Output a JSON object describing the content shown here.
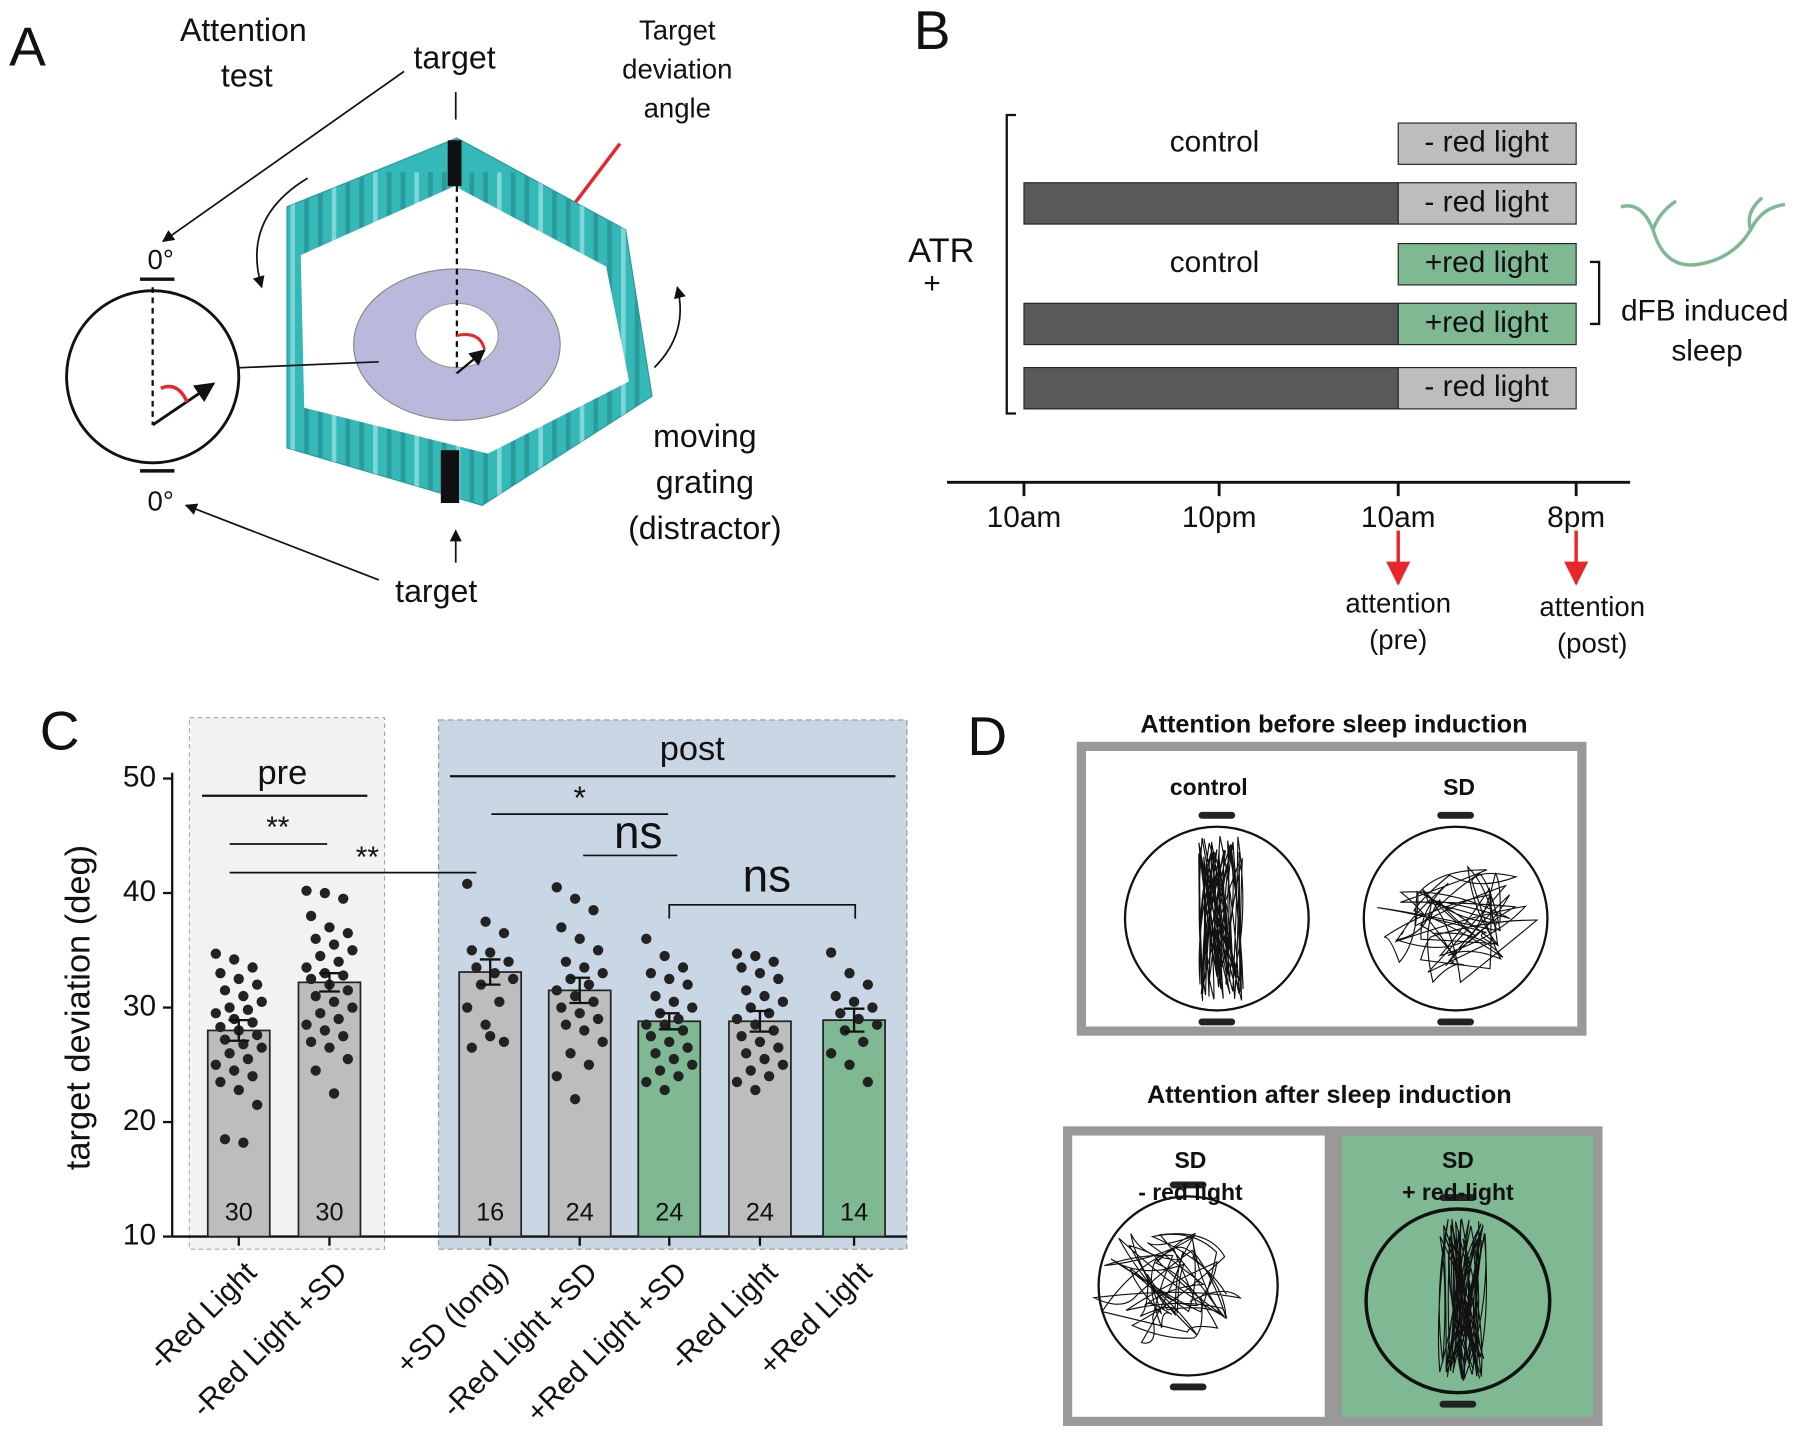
{
  "panels": {
    "a": {
      "letter": "A",
      "title": [
        "Attention",
        "test"
      ],
      "target_top": "target",
      "target_bottom": "target",
      "angle_label": [
        "Target",
        "deviation",
        "angle"
      ],
      "zero_top": "0°",
      "zero_bottom": "0°",
      "distractor": [
        "moving",
        "grating",
        "(distractor)"
      ]
    },
    "b": {
      "letter": "B",
      "group": [
        "ATR",
        "+"
      ],
      "rows": [
        {
          "label": "control",
          "light": "- red light",
          "color": "#bdbdbd"
        },
        {
          "light": "- red light",
          "color": "#bdbdbd"
        },
        {
          "label": "control",
          "light": "+red light",
          "color": "#7fb993"
        },
        {
          "light": "+red light",
          "color": "#7fb993"
        },
        {
          "light": "- red light",
          "color": "#bdbdbd"
        }
      ],
      "dark_color": "#58595b",
      "times": [
        "10am",
        "10pm",
        "10am",
        "8pm"
      ],
      "tests": [
        [
          "attention",
          "(pre)"
        ],
        [
          "attention",
          "(post)"
        ]
      ],
      "sleep_note": [
        "dFB induced",
        "sleep"
      ],
      "sleep_color": "#7fb993"
    },
    "d": {
      "letter": "D",
      "before_title": "Attention before sleep induction",
      "after_title": "Attention after sleep induction",
      "boxes": [
        [
          "control"
        ],
        [
          "SD"
        ],
        [
          "SD",
          "- red light"
        ],
        [
          "SD",
          "+ red-light"
        ]
      ],
      "green": "#7fb993"
    }
  },
  "chart_data": {
    "type": "bar",
    "panel_label": "C",
    "ylabel": "target deviation (deg)",
    "categories": [
      "-Red Light",
      "-Red Light +SD",
      "+SD (long)",
      "-Red Light +SD",
      "+Red Light +SD",
      "-Red Light",
      "+Red Light"
    ],
    "values": [
      28,
      32.2,
      33.1,
      31.5,
      28.8,
      28.8,
      28.9
    ],
    "errors": [
      0.9,
      0.8,
      1.1,
      1.1,
      0.7,
      0.9,
      1.0
    ],
    "colors": [
      "#bdbdbd",
      "#bdbdbd",
      "#bdbdbd",
      "#bdbdbd",
      "#7fb993",
      "#bdbdbd",
      "#7fb993"
    ],
    "n": [
      30,
      30,
      16,
      24,
      24,
      24,
      14
    ],
    "points": [
      [
        34.7,
        34.2,
        33.5,
        33,
        32.5,
        32,
        31.5,
        31,
        30.5,
        30,
        29.8,
        29.5,
        29,
        28.7,
        28.3,
        28,
        27.6,
        27.2,
        26.8,
        26.5,
        26,
        25.5,
        25,
        24.5,
        24,
        23.5,
        22.8,
        21.5,
        18.5,
        18.2
      ],
      [
        40.2,
        40,
        39.5,
        38,
        37,
        36.5,
        36,
        35.5,
        35,
        34.5,
        34,
        33.5,
        33,
        32.8,
        32.5,
        32,
        31.5,
        31,
        30.5,
        30,
        29.5,
        29,
        28.5,
        28,
        27.5,
        27,
        26.5,
        25.5,
        24.5,
        22.5
      ],
      [
        40.8,
        37.5,
        36.5,
        35,
        34.8,
        34,
        33.5,
        33,
        32.5,
        32,
        30.5,
        30,
        28.5,
        27,
        26.5,
        27.5
      ],
      [
        40.5,
        39.5,
        38.5,
        37,
        36,
        35,
        34,
        33.5,
        33,
        32.5,
        32,
        31.5,
        31,
        30.5,
        30,
        29.5,
        29,
        28.5,
        28,
        27,
        26,
        25,
        24,
        22
      ],
      [
        36,
        34.5,
        33.5,
        33,
        32.5,
        32,
        31,
        30.5,
        30,
        29.5,
        29,
        28.5,
        28.5,
        28,
        27.5,
        27,
        26.5,
        26,
        25.5,
        25,
        24.5,
        24,
        23.5,
        22.8
      ],
      [
        34.7,
        34.5,
        34,
        33.5,
        33,
        32.5,
        31.5,
        31,
        30.5,
        30,
        29.5,
        29,
        28.5,
        28,
        27.5,
        27,
        26.5,
        26,
        25.5,
        25,
        24.5,
        24,
        23.5,
        22.8
      ],
      [
        34.8,
        33,
        32,
        31,
        30.5,
        30,
        29.5,
        29,
        28.5,
        28,
        27,
        26,
        25,
        23.5
      ]
    ],
    "groups": [
      "pre",
      "post"
    ],
    "significance": [
      "**",
      "**",
      "*",
      "ns",
      "ns"
    ],
    "ylim": [
      10,
      50
    ],
    "yticks": [
      10,
      20,
      30,
      40,
      50
    ]
  }
}
